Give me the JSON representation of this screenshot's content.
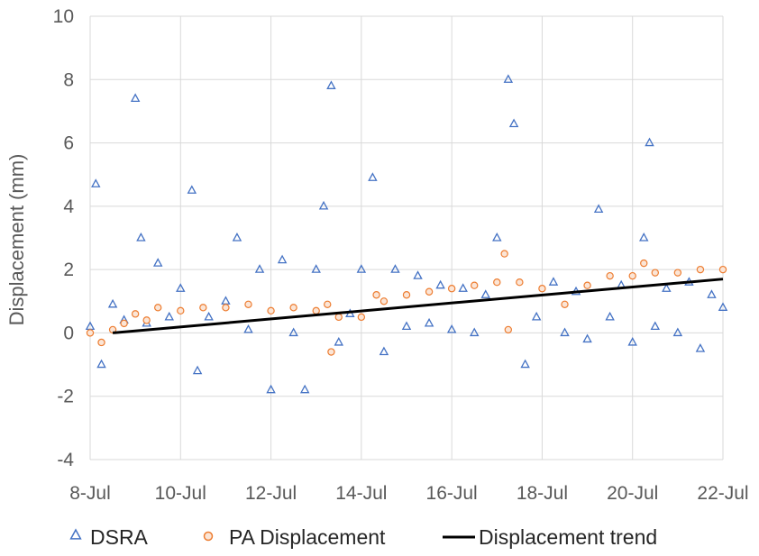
{
  "chart_data": {
    "type": "scatter",
    "title": "",
    "xlabel": "",
    "ylabel": "Displacement (mm)",
    "x_ticks": [
      "8-Jul",
      "10-Jul",
      "12-Jul",
      "14-Jul",
      "16-Jul",
      "18-Jul",
      "20-Jul",
      "22-Jul"
    ],
    "y_ticks": [
      "10",
      "8",
      "6",
      "4",
      "2",
      "0",
      "-2",
      "-4"
    ],
    "xlim": [
      "2021-07-08",
      "2021-07-22"
    ],
    "ylim": [
      -4,
      10
    ],
    "grid": true,
    "legend_position": "bottom",
    "series": [
      {
        "name": "DSRA",
        "marker": "open-triangle",
        "color": "#4472C4",
        "points": [
          [
            "2021-07-08",
            0.2
          ],
          [
            "2021-07-08 03:00",
            4.7
          ],
          [
            "2021-07-08 06:00",
            -1.0
          ],
          [
            "2021-07-08 12:00",
            0.9
          ],
          [
            "2021-07-08 18:00",
            0.4
          ],
          [
            "2021-07-09 00:00",
            7.4
          ],
          [
            "2021-07-09 03:00",
            3.0
          ],
          [
            "2021-07-09 06:00",
            0.3
          ],
          [
            "2021-07-09 12:00",
            2.2
          ],
          [
            "2021-07-09 18:00",
            0.5
          ],
          [
            "2021-07-10 00:00",
            1.4
          ],
          [
            "2021-07-10 06:00",
            4.5
          ],
          [
            "2021-07-10 09:00",
            -1.2
          ],
          [
            "2021-07-10 15:00",
            0.5
          ],
          [
            "2021-07-11 00:00",
            1.0
          ],
          [
            "2021-07-11 06:00",
            3.0
          ],
          [
            "2021-07-11 12:00",
            0.1
          ],
          [
            "2021-07-11 18:00",
            2.0
          ],
          [
            "2021-07-12 00:00",
            -1.8
          ],
          [
            "2021-07-12 06:00",
            2.3
          ],
          [
            "2021-07-12 12:00",
            0.0
          ],
          [
            "2021-07-12 18:00",
            -1.8
          ],
          [
            "2021-07-13 00:00",
            2.0
          ],
          [
            "2021-07-13 04:00",
            4.0
          ],
          [
            "2021-07-13 08:00",
            7.8
          ],
          [
            "2021-07-13 12:00",
            -0.3
          ],
          [
            "2021-07-13 18:00",
            0.6
          ],
          [
            "2021-07-14 00:00",
            2.0
          ],
          [
            "2021-07-14 06:00",
            4.9
          ],
          [
            "2021-07-14 12:00",
            -0.6
          ],
          [
            "2021-07-14 18:00",
            2.0
          ],
          [
            "2021-07-15 00:00",
            0.2
          ],
          [
            "2021-07-15 06:00",
            1.8
          ],
          [
            "2021-07-15 12:00",
            0.3
          ],
          [
            "2021-07-15 18:00",
            1.5
          ],
          [
            "2021-07-16 00:00",
            0.1
          ],
          [
            "2021-07-16 06:00",
            1.4
          ],
          [
            "2021-07-16 12:00",
            0.0
          ],
          [
            "2021-07-16 18:00",
            1.2
          ],
          [
            "2021-07-17 00:00",
            3.0
          ],
          [
            "2021-07-17 06:00",
            8.0
          ],
          [
            "2021-07-17 09:00",
            6.6
          ],
          [
            "2021-07-17 15:00",
            -1.0
          ],
          [
            "2021-07-17 21:00",
            0.5
          ],
          [
            "2021-07-18 06:00",
            1.6
          ],
          [
            "2021-07-18 12:00",
            0.0
          ],
          [
            "2021-07-18 18:00",
            1.3
          ],
          [
            "2021-07-19 00:00",
            -0.2
          ],
          [
            "2021-07-19 06:00",
            3.9
          ],
          [
            "2021-07-19 12:00",
            0.5
          ],
          [
            "2021-07-19 18:00",
            1.5
          ],
          [
            "2021-07-20 00:00",
            -0.3
          ],
          [
            "2021-07-20 06:00",
            3.0
          ],
          [
            "2021-07-20 09:00",
            6.0
          ],
          [
            "2021-07-20 12:00",
            0.2
          ],
          [
            "2021-07-20 18:00",
            1.4
          ],
          [
            "2021-07-21 00:00",
            0.0
          ],
          [
            "2021-07-21 06:00",
            1.6
          ],
          [
            "2021-07-21 12:00",
            -0.5
          ],
          [
            "2021-07-21 18:00",
            1.2
          ],
          [
            "2021-07-22 00:00",
            0.8
          ]
        ]
      },
      {
        "name": "PA Displacement",
        "marker": "open-circle",
        "color": "#ED7D31",
        "points": [
          [
            "2021-07-08 00:00",
            0.0
          ],
          [
            "2021-07-08 06:00",
            -0.3
          ],
          [
            "2021-07-08 12:00",
            0.1
          ],
          [
            "2021-07-08 18:00",
            0.3
          ],
          [
            "2021-07-09 00:00",
            0.6
          ],
          [
            "2021-07-09 06:00",
            0.4
          ],
          [
            "2021-07-09 12:00",
            0.8
          ],
          [
            "2021-07-10 00:00",
            0.7
          ],
          [
            "2021-07-10 12:00",
            0.8
          ],
          [
            "2021-07-11 00:00",
            0.8
          ],
          [
            "2021-07-11 12:00",
            0.9
          ],
          [
            "2021-07-12 00:00",
            0.7
          ],
          [
            "2021-07-12 12:00",
            0.8
          ],
          [
            "2021-07-13 00:00",
            0.7
          ],
          [
            "2021-07-13 06:00",
            0.9
          ],
          [
            "2021-07-13 08:00",
            -0.6
          ],
          [
            "2021-07-13 12:00",
            0.5
          ],
          [
            "2021-07-14 00:00",
            0.5
          ],
          [
            "2021-07-14 08:00",
            1.2
          ],
          [
            "2021-07-14 12:00",
            1.0
          ],
          [
            "2021-07-15 00:00",
            1.2
          ],
          [
            "2021-07-15 12:00",
            1.3
          ],
          [
            "2021-07-16 00:00",
            1.4
          ],
          [
            "2021-07-16 12:00",
            1.5
          ],
          [
            "2021-07-17 00:00",
            1.6
          ],
          [
            "2021-07-17 04:00",
            2.5
          ],
          [
            "2021-07-17 06:00",
            0.1
          ],
          [
            "2021-07-17 12:00",
            1.6
          ],
          [
            "2021-07-18 00:00",
            1.4
          ],
          [
            "2021-07-18 12:00",
            0.9
          ],
          [
            "2021-07-19 00:00",
            1.5
          ],
          [
            "2021-07-19 12:00",
            1.8
          ],
          [
            "2021-07-20 00:00",
            1.8
          ],
          [
            "2021-07-20 06:00",
            2.2
          ],
          [
            "2021-07-20 12:00",
            1.9
          ],
          [
            "2021-07-21 00:00",
            1.9
          ],
          [
            "2021-07-21 12:00",
            2.0
          ],
          [
            "2021-07-22 00:00",
            2.0
          ]
        ]
      },
      {
        "name": "Displacement trend",
        "marker": "line",
        "color": "#000000",
        "points": [
          [
            "2021-07-08 12:00",
            0.0
          ],
          [
            "2021-07-22 00:00",
            1.7
          ]
        ]
      }
    ]
  }
}
